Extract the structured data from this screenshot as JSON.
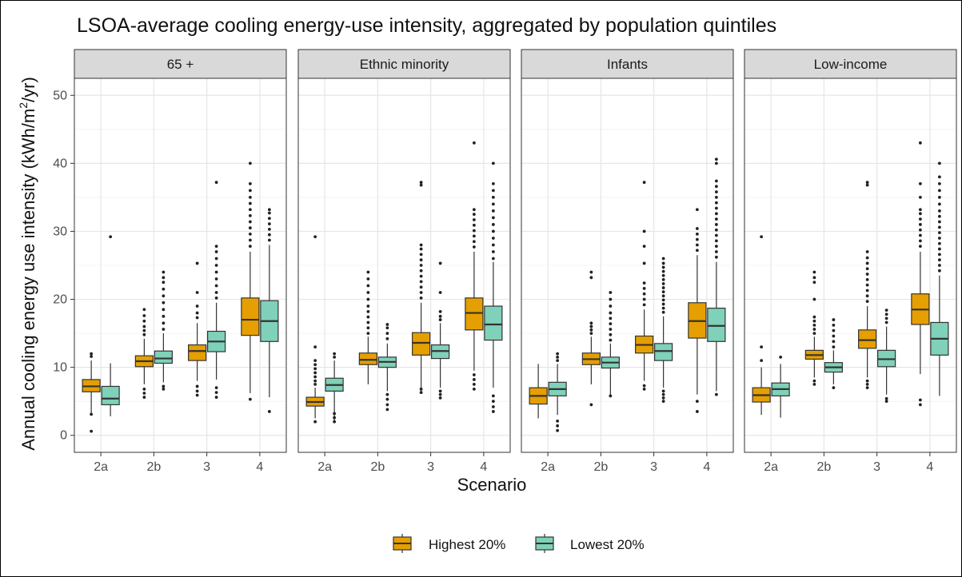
{
  "chart_data": {
    "type": "boxplot",
    "title": "LSOA-average cooling energy-use intensity, aggregated by population quintiles",
    "xlabel": "Scenario",
    "ylabel": "Annual cooling energy use intensity (kWh/m",
    "ylabel_sup": "2",
    "ylabel_end": "/yr)",
    "ylim": [
      -2.5,
      52.5
    ],
    "yticks": [
      0,
      10,
      20,
      30,
      40,
      50
    ],
    "categories": [
      "2a",
      "2b",
      "3",
      "4"
    ],
    "grid": true,
    "legend_position": "bottom",
    "series": [
      {
        "name": "Highest 20%",
        "color": "#E69F00"
      },
      {
        "name": "Lowest 20%",
        "color": "#7FD1B9"
      }
    ],
    "panels": [
      {
        "label": "65 +",
        "boxes": [
          {
            "category": "2a",
            "series": "Highest 20%",
            "lw": 3.0,
            "q1": 6.4,
            "median": 7.2,
            "q3": 8.2,
            "uw": 11.0,
            "outliers": [
              0.6,
              3.1,
              11.6,
              12.0
            ]
          },
          {
            "category": "2a",
            "series": "Lowest 20%",
            "lw": 2.8,
            "q1": 4.5,
            "median": 5.4,
            "q3": 7.2,
            "uw": 10.6,
            "outliers": [
              29.2
            ]
          },
          {
            "category": "2b",
            "series": "Highest 20%",
            "lw": 7.5,
            "q1": 10.1,
            "median": 10.9,
            "q3": 11.7,
            "uw": 14.2,
            "outliers": [
              5.6,
              6.2,
              6.8,
              14.8,
              15.4,
              16.0,
              16.8,
              17.6,
              18.5
            ]
          },
          {
            "category": "2b",
            "series": "Lowest 20%",
            "lw": 7.8,
            "q1": 10.6,
            "median": 11.3,
            "q3": 12.4,
            "uw": 15.0,
            "outliers": [
              6.8,
              7.2,
              15.6,
              16.5,
              17.5,
              18.5,
              19.5,
              20.5,
              21.5,
              22.5,
              23.2,
              24.0
            ]
          },
          {
            "category": "3",
            "series": "Highest 20%",
            "lw": 8.0,
            "q1": 11.0,
            "median": 12.4,
            "q3": 13.3,
            "uw": 16.5,
            "outliers": [
              5.9,
              6.5,
              7.2,
              17.3,
              18.0,
              19.0,
              21.0,
              25.3
            ]
          },
          {
            "category": "3",
            "series": "Lowest 20%",
            "lw": 8.2,
            "q1": 12.3,
            "median": 13.8,
            "q3": 15.3,
            "uw": 19.5,
            "outliers": [
              5.6,
              6.3,
              7.0,
              20.2,
              21.0,
              22.0,
              23.0,
              24.0,
              25.0,
              26.0,
              27.0,
              27.8,
              37.2
            ]
          },
          {
            "category": "4",
            "series": "Highest 20%",
            "lw": 6.2,
            "q1": 14.7,
            "median": 17.0,
            "q3": 20.2,
            "uw": 27.0,
            "outliers": [
              5.3,
              27.8,
              28.7,
              29.6,
              30.5,
              31.4,
              32.3,
              33.2,
              34.1,
              35.0,
              36.0,
              37.0,
              40.0
            ]
          },
          {
            "category": "4",
            "series": "Lowest 20%",
            "lw": 5.6,
            "q1": 13.8,
            "median": 16.8,
            "q3": 19.8,
            "uw": 28.0,
            "outliers": [
              3.5,
              28.7,
              29.5,
              30.3,
              31.1,
              31.9,
              32.7,
              33.2
            ]
          }
        ]
      },
      {
        "label": "Ethnic minority",
        "boxes": [
          {
            "category": "2a",
            "series": "Highest 20%",
            "lw": 2.5,
            "q1": 4.3,
            "median": 4.9,
            "q3": 5.6,
            "uw": 7.0,
            "outliers": [
              2.0,
              7.5,
              8.0,
              8.6,
              9.2,
              9.8,
              10.4,
              11.0,
              13.0,
              29.2
            ]
          },
          {
            "category": "2a",
            "series": "Lowest 20%",
            "lw": 2.0,
            "q1": 6.5,
            "median": 7.4,
            "q3": 8.4,
            "uw": 11.0,
            "outliers": [
              2.0,
              2.6,
              3.2,
              11.5,
              12.0
            ]
          },
          {
            "category": "2b",
            "series": "Highest 20%",
            "lw": 7.5,
            "q1": 10.4,
            "median": 11.1,
            "q3": 12.1,
            "uw": 14.5,
            "outliers": [
              15.0,
              15.8,
              16.6,
              17.4,
              18.2,
              19.0,
              20.0,
              21.0,
              22.0,
              23.0,
              24.0
            ]
          },
          {
            "category": "2b",
            "series": "Lowest 20%",
            "lw": 6.5,
            "q1": 10.0,
            "median": 10.8,
            "q3": 11.5,
            "uw": 13.5,
            "outliers": [
              3.8,
              4.5,
              5.3,
              6.0,
              14.2,
              15.0,
              15.8,
              16.3
            ]
          },
          {
            "category": "3",
            "series": "Highest 20%",
            "lw": 6.5,
            "q1": 11.8,
            "median": 13.6,
            "q3": 15.1,
            "uw": 19.5,
            "outliers": [
              6.3,
              6.8,
              20.2,
              21.0,
              21.8,
              22.6,
              23.4,
              24.2,
              25.0,
              25.8,
              26.6,
              27.4,
              28.0,
              36.8,
              37.2
            ]
          },
          {
            "category": "3",
            "series": "Lowest 20%",
            "lw": 7.0,
            "q1": 11.3,
            "median": 12.4,
            "q3": 13.3,
            "uw": 16.5,
            "outliers": [
              5.5,
              6.0,
              6.5,
              17.0,
              17.5,
              18.2,
              21.0,
              25.3
            ]
          },
          {
            "category": "4",
            "series": "Highest 20%",
            "lw": 9.5,
            "q1": 15.5,
            "median": 18.0,
            "q3": 20.2,
            "uw": 27.0,
            "outliers": [
              6.8,
              7.5,
              8.2,
              8.9,
              27.7,
              28.5,
              29.3,
              30.1,
              30.9,
              31.7,
              32.5,
              33.2,
              43.0
            ]
          },
          {
            "category": "4",
            "series": "Lowest 20%",
            "lw": 7.0,
            "q1": 14.0,
            "median": 16.3,
            "q3": 19.0,
            "uw": 25.5,
            "outliers": [
              3.5,
              4.2,
              5.0,
              5.8,
              26.0,
              27.0,
              28.0,
              29.0,
              30.0,
              31.0,
              32.0,
              33.0,
              34.0,
              35.0,
              36.0,
              37.0,
              40.0
            ]
          }
        ]
      },
      {
        "label": "Infants",
        "boxes": [
          {
            "category": "2a",
            "series": "Highest 20%",
            "lw": 2.5,
            "q1": 4.6,
            "median": 5.8,
            "q3": 7.0,
            "uw": 10.5,
            "outliers": []
          },
          {
            "category": "2a",
            "series": "Lowest 20%",
            "lw": 3.0,
            "q1": 5.8,
            "median": 6.8,
            "q3": 7.8,
            "uw": 10.5,
            "outliers": [
              0.7,
              1.4,
              2.1,
              11.0,
              11.5,
              12.0
            ]
          },
          {
            "category": "2b",
            "series": "Highest 20%",
            "lw": 7.5,
            "q1": 10.4,
            "median": 11.2,
            "q3": 12.1,
            "uw": 14.5,
            "outliers": [
              4.5,
              15.0,
              15.5,
              16.0,
              16.5,
              23.2,
              24.0
            ]
          },
          {
            "category": "2b",
            "series": "Lowest 20%",
            "lw": 6.0,
            "q1": 9.9,
            "median": 10.7,
            "q3": 11.5,
            "uw": 13.5,
            "outliers": [
              5.8,
              14.0,
              14.8,
              15.6,
              16.4,
              17.2,
              18.0,
              19.0,
              20.0,
              21.0
            ]
          },
          {
            "category": "3",
            "series": "Highest 20%",
            "lw": 8.0,
            "q1": 12.1,
            "median": 13.3,
            "q3": 14.6,
            "uw": 18.5,
            "outliers": [
              6.8,
              7.3,
              19.2,
              20.0,
              20.8,
              21.6,
              22.4,
              25.3,
              27.8,
              30.0,
              37.2
            ]
          },
          {
            "category": "3",
            "series": "Lowest 20%",
            "lw": 7.0,
            "q1": 11.0,
            "median": 12.4,
            "q3": 13.5,
            "uw": 17.5,
            "outliers": [
              5.0,
              5.5,
              6.0,
              6.5,
              18.1,
              18.7,
              19.3,
              19.9,
              20.5,
              21.1,
              21.7,
              22.3,
              22.9,
              23.5,
              24.1,
              24.7,
              25.3,
              26.0
            ]
          },
          {
            "category": "4",
            "series": "Highest 20%",
            "lw": 6.0,
            "q1": 14.3,
            "median": 16.8,
            "q3": 19.5,
            "uw": 26.5,
            "outliers": [
              3.5,
              5.0,
              27.2,
              28.0,
              28.8,
              29.6,
              30.4,
              33.2
            ]
          },
          {
            "category": "4",
            "series": "Lowest 20%",
            "lw": 6.5,
            "q1": 13.8,
            "median": 16.1,
            "q3": 18.7,
            "uw": 25.5,
            "outliers": [
              6.0,
              26.2,
              27.0,
              27.8,
              28.6,
              29.4,
              30.2,
              31.0,
              31.8,
              32.6,
              33.4,
              34.2,
              35.0,
              35.8,
              36.6,
              37.4,
              40.0,
              40.6
            ]
          }
        ]
      },
      {
        "label": "Low-income",
        "boxes": [
          {
            "category": "2a",
            "series": "Highest 20%",
            "lw": 3.0,
            "q1": 4.9,
            "median": 5.9,
            "q3": 7.0,
            "uw": 10.0,
            "outliers": [
              11.0,
              13.0,
              29.2
            ]
          },
          {
            "category": "2a",
            "series": "Lowest 20%",
            "lw": 2.6,
            "q1": 5.8,
            "median": 6.8,
            "q3": 7.7,
            "uw": 10.5,
            "outliers": [
              11.5
            ]
          },
          {
            "category": "2b",
            "series": "Highest 20%",
            "lw": 8.5,
            "q1": 11.2,
            "median": 11.8,
            "q3": 12.5,
            "uw": 14.5,
            "outliers": [
              7.5,
              8.0,
              15.0,
              15.6,
              16.2,
              16.8,
              17.4,
              20.0,
              22.5,
              23.2,
              24.0
            ]
          },
          {
            "category": "2b",
            "series": "Lowest 20%",
            "lw": 7.5,
            "q1": 9.3,
            "median": 10.0,
            "q3": 10.7,
            "uw": 12.5,
            "outliers": [
              7.0,
              13.0,
              13.8,
              14.6,
              15.4,
              16.2,
              17.0
            ]
          },
          {
            "category": "3",
            "series": "Highest 20%",
            "lw": 8.5,
            "q1": 12.8,
            "median": 14.0,
            "q3": 15.5,
            "uw": 19.0,
            "outliers": [
              7.0,
              7.5,
              8.0,
              19.7,
              20.5,
              21.3,
              22.1,
              22.9,
              23.7,
              24.5,
              25.3,
              26.1,
              27.0,
              36.8,
              37.2
            ]
          },
          {
            "category": "3",
            "series": "Lowest 20%",
            "lw": 6.0,
            "q1": 10.1,
            "median": 11.2,
            "q3": 12.5,
            "uw": 16.0,
            "outliers": [
              5.0,
              5.4,
              16.6,
              17.2,
              17.8,
              18.4
            ]
          },
          {
            "category": "4",
            "series": "Highest 20%",
            "lw": 9.0,
            "q1": 16.3,
            "median": 18.5,
            "q3": 20.8,
            "uw": 27.0,
            "outliers": [
              4.5,
              5.2,
              27.8,
              28.6,
              29.4,
              30.2,
              31.0,
              31.8,
              32.6,
              33.2,
              35.0,
              37.0,
              43.0
            ]
          },
          {
            "category": "4",
            "series": "Lowest 20%",
            "lw": 5.8,
            "q1": 11.8,
            "median": 14.2,
            "q3": 16.6,
            "uw": 23.5,
            "outliers": [
              24.2,
              25.0,
              25.8,
              26.6,
              27.4,
              28.2,
              29.0,
              29.8,
              30.6,
              31.4,
              32.2,
              33.0,
              34.0,
              35.0,
              36.0,
              37.0,
              38.0,
              40.0
            ]
          }
        ]
      }
    ]
  }
}
